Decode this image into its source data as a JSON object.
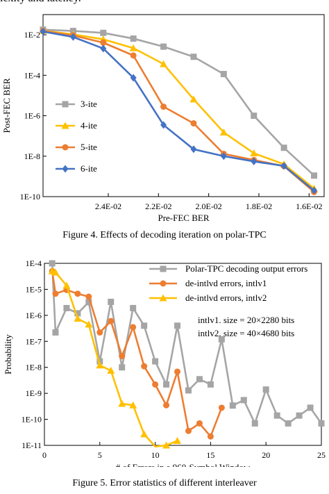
{
  "top_text": "lexity and latency.",
  "figure4": {
    "caption": "Figure 4.    Effects of decoding iteration on polar-TPC"
  },
  "figure5": {
    "caption": "Figure 5.    Error statistics of different interleaver"
  },
  "colors": {
    "gray": "#a5a5a5",
    "yellow": "#ffc000",
    "orange": "#ed7d31",
    "blue": "#4472c4"
  },
  "chart_data": [
    {
      "type": "line",
      "xlabel": "Pre-FEC BER",
      "ylabel": "Post-FEC BER",
      "x_reversed": true,
      "y_scale": "log",
      "xlim": [
        0.0266,
        0.0154
      ],
      "ylim": [
        1e-10,
        0.1
      ],
      "x_ticks": [
        0.024,
        0.022,
        0.02,
        0.018,
        0.016
      ],
      "x_tick_labels": [
        "2.4E-02",
        "2.2E-02",
        "2.0E-02",
        "1.8E-02",
        "1.6E-02"
      ],
      "y_ticks": [
        1e-10,
        1e-08,
        1e-06,
        0.0001,
        0.01
      ],
      "y_tick_labels": [
        "1E-10",
        "1E-8",
        "1E-6",
        "1E-4",
        "1E-2"
      ],
      "legend": "left-middle",
      "x": [
        0.0266,
        0.0254,
        0.0242,
        0.023,
        0.0218,
        0.0206,
        0.0194,
        0.0182,
        0.017,
        0.0158
      ],
      "series": [
        {
          "name": "3-ite",
          "color": "#a5a5a5",
          "marker": "square",
          "values": [
            0.018,
            0.0155,
            0.0125,
            0.0065,
            0.0026,
            0.00082,
            0.000115,
            1e-06,
            2.6e-08,
            1.1e-09
          ]
        },
        {
          "name": "4-ite",
          "color": "#ffc000",
          "marker": "triangle",
          "values": [
            0.016,
            0.0105,
            0.006,
            0.0022,
            0.00036,
            6.5e-06,
            1.5e-07,
            1.4e-08,
            4e-09,
            2.5e-10
          ]
        },
        {
          "name": "5-ite",
          "color": "#ed7d31",
          "marker": "circle",
          "values": [
            0.0155,
            0.0093,
            0.0041,
            0.00095,
            2.8e-06,
            4.2e-07,
            1.3e-08,
            6.5e-09,
            3.2e-09,
            1.7e-10
          ]
        },
        {
          "name": "6-ite",
          "color": "#4472c4",
          "marker": "diamond",
          "values": [
            0.0145,
            0.0078,
            0.0021,
            7.5e-05,
            3.5e-07,
            2.2e-08,
            1e-08,
            5.5e-09,
            3.3e-09,
            2e-10
          ]
        }
      ]
    },
    {
      "type": "line",
      "xlabel": "# of Errors in a 960-Symbol Window",
      "ylabel": "Probability",
      "y_scale": "log",
      "xlim": [
        0,
        25
      ],
      "ylim": [
        1e-11,
        0.0001
      ],
      "x_ticks": [
        0,
        5,
        10,
        15,
        20,
        25
      ],
      "x_tick_labels": [
        "0",
        "5",
        "10",
        "15",
        "20",
        "25"
      ],
      "y_ticks": [
        1e-11,
        1e-10,
        1e-09,
        1e-08,
        1e-07,
        1e-06,
        1e-05,
        0.0001
      ],
      "y_tick_labels": [
        "1E-11",
        "1E-10",
        "1E-9",
        "1E-8",
        "1E-7",
        "1E-6",
        "1E-5",
        "1E-4"
      ],
      "legend": "top-right",
      "annotations": [
        "intlv1. size = 20×2280 bits",
        "intlv2. size = 40×4680 bits"
      ],
      "series": [
        {
          "name": "Polar-TPC decoding output errors",
          "color": "#a5a5a5",
          "marker": "square",
          "x": [
            0.7,
            1,
            2,
            3,
            4,
            5,
            6,
            7,
            8,
            9,
            10,
            11,
            12,
            13,
            14,
            15,
            16,
            17,
            18,
            19,
            20,
            21,
            22,
            23,
            24,
            25
          ],
          "values": [
            0.0001,
            2.2e-07,
            1.9e-06,
            1.2e-06,
            3.2e-06,
            1.7e-08,
            3.3e-06,
            1e-08,
            1.9e-06,
            4e-07,
            1.7e-08,
            2.2e-09,
            4e-07,
            1.3e-09,
            3.5e-09,
            2.2e-09,
            1.2e-07,
            3.4e-10,
            5.5e-10,
            7e-11,
            1.4e-09,
            1.4e-10,
            7e-11,
            1.4e-10,
            2.8e-10,
            7e-11
          ]
        },
        {
          "name": "de-intlvd errors, intlv1",
          "color": "#ed7d31",
          "marker": "circle",
          "x": [
            0.7,
            1,
            2,
            3,
            4,
            5,
            6,
            7,
            8,
            9,
            10,
            11,
            12,
            13,
            14,
            15,
            16
          ],
          "values": [
            5e-05,
            6.8e-06,
            9.5e-06,
            6.8e-06,
            5.2e-06,
            2.2e-07,
            6e-07,
            2.7e-08,
            3.5e-07,
            1.1e-08,
            2.2e-09,
            3.5e-10,
            6.8e-09,
            3.6e-11,
            7e-11,
            2.2e-11,
            2.8e-10
          ]
        },
        {
          "name": "de-intlvd errors, intlv2",
          "color": "#ffc000",
          "marker": "triangle",
          "x": [
            0.7,
            1,
            2,
            3,
            4,
            5,
            6,
            7,
            8,
            9,
            10,
            11,
            12
          ],
          "values": [
            5e-05,
            4.5e-05,
            1.4e-05,
            7.5e-07,
            4.5e-07,
            1.2e-08,
            7.5e-09,
            4e-10,
            3.5e-10,
            2.7e-11,
            9e-12,
            1e-11,
            1.5e-11
          ]
        }
      ]
    }
  ]
}
